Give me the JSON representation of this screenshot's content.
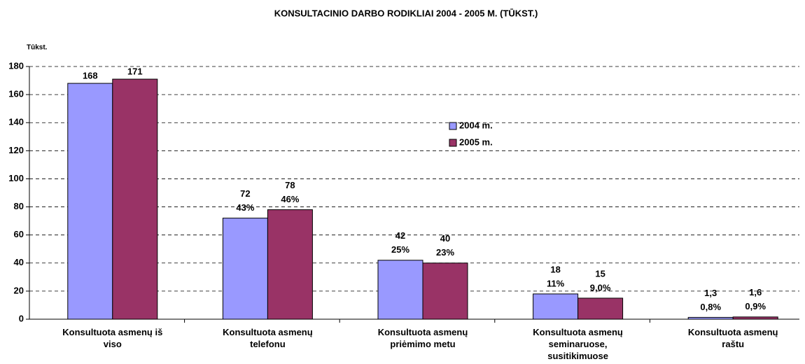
{
  "chart_data": {
    "type": "bar",
    "title": "KONSULTACINIO DARBO RODIKLIAI 2004 - 2005 M. (TŪKST.)",
    "y_label": "Tūkst.",
    "categories": [
      "Konsultuota asmenų iš viso",
      "Konsultuota asmenų telefonu",
      "Konsultuota asmenų priėmimo metu",
      "Konsultuota asmenų seminaruose, susitikimuose",
      "Konsultuota asmenų raštu"
    ],
    "series": [
      {
        "name": "2004 m.",
        "color": "#9999ff",
        "values": [
          168,
          72,
          42,
          18,
          1.3
        ],
        "value_labels": [
          "168",
          "72",
          "42",
          "18",
          "1,3"
        ],
        "share_labels": [
          null,
          "43%",
          "25%",
          "11%",
          "0,8%"
        ]
      },
      {
        "name": "2005 m.",
        "color": "#993366",
        "values": [
          171,
          78,
          40,
          15,
          1.6
        ],
        "value_labels": [
          "171",
          "78",
          "40",
          "15",
          "1,6"
        ],
        "share_labels": [
          null,
          "46%",
          "23%",
          "9,0%",
          "0,9%"
        ]
      }
    ],
    "ylim": [
      0,
      180
    ],
    "yticks": [
      0,
      20,
      40,
      60,
      80,
      100,
      120,
      140,
      160,
      180
    ],
    "grid": true,
    "legend": "center"
  }
}
